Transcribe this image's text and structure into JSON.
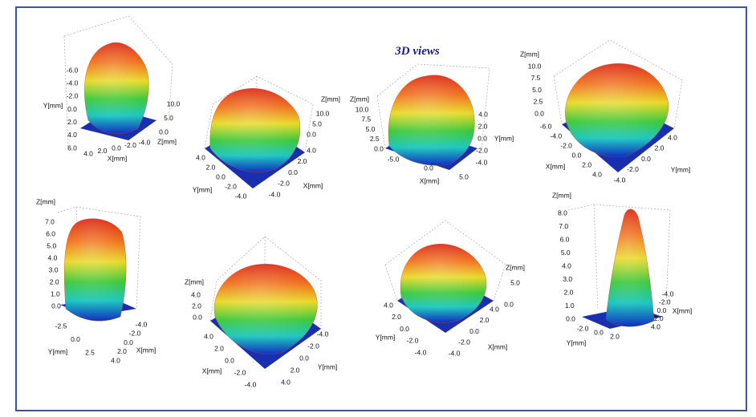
{
  "title": "3D views",
  "panels": [
    {
      "axes": [
        {
          "label": "Y[mm]",
          "ticks": [
            "-6.0",
            "-4.0",
            "-2.0",
            "0.0",
            "2.0",
            "4.0",
            "6.0"
          ]
        },
        {
          "label": "X[mm]",
          "ticks": [
            "4.0",
            "2.0",
            "0.0",
            "-2.0",
            "-4.0"
          ]
        },
        {
          "label": "Z[mm]",
          "ticks": [
            "10.0",
            "5.0",
            "0.0"
          ]
        }
      ]
    },
    {
      "axes": [
        {
          "label": "Z[mm]",
          "ticks": [
            "10.0",
            "5.0",
            "0.0"
          ]
        },
        {
          "label": "Y[mm]",
          "ticks": [
            "4.0",
            "2.0",
            "0.0",
            "-2.0",
            "-4.0"
          ]
        },
        {
          "label": "X[mm]",
          "ticks": [
            "4.0",
            "2.0",
            "0.0",
            "-2.0",
            "-4.0"
          ]
        }
      ]
    },
    {
      "axes": [
        {
          "label": "Z[mm]",
          "ticks": [
            "10.0",
            "7.5",
            "5.0",
            "2.5",
            "0.0"
          ]
        },
        {
          "label": "X[mm]",
          "ticks": [
            "-5.0",
            "0.0",
            "5.0"
          ]
        },
        {
          "label": "Y[mm]",
          "ticks": [
            "4.0",
            "2.0",
            "0.0",
            "-2.0",
            "-4.0"
          ]
        }
      ]
    },
    {
      "axes": [
        {
          "label": "Z[mm]",
          "ticks": [
            "10.0",
            "7.5",
            "5.0",
            "2.5",
            "0.0"
          ]
        },
        {
          "label": "X[mm]",
          "ticks": [
            "-6.0",
            "-4.0",
            "-2.0",
            "0.0",
            "2.0",
            "4.0"
          ]
        },
        {
          "label": "Y[mm]",
          "ticks": [
            "4.0",
            "2.0",
            "0.0",
            "-2.0",
            "-4.0"
          ]
        }
      ]
    },
    {
      "axes": [
        {
          "label": "Z[mm]",
          "ticks": [
            "7.0",
            "6.0",
            "5.0",
            "4.0",
            "3.0",
            "2.0",
            "1.0",
            "0.0"
          ]
        },
        {
          "label": "Y[mm]",
          "ticks": [
            "-2.5",
            "0.0",
            "2.5"
          ]
        },
        {
          "label": "X[mm]",
          "ticks": [
            "-4.0",
            "-2.0",
            "0.0",
            "2.0",
            "4.0"
          ]
        }
      ]
    },
    {
      "axes": [
        {
          "label": "Z[mm]",
          "ticks": [
            "4.0",
            "2.0",
            "0.0"
          ]
        },
        {
          "label": "X[mm]",
          "ticks": [
            "4.0",
            "2.0",
            "0.0",
            "-2.0",
            "-4.0"
          ]
        },
        {
          "label": "Y[mm]",
          "ticks": [
            "-4.0",
            "-2.0",
            "0.0",
            "2.0",
            "4.0"
          ]
        }
      ]
    },
    {
      "axes": [
        {
          "label": "Z[mm]",
          "ticks": [
            "5.0",
            "0.0"
          ]
        },
        {
          "label": "Y[mm]",
          "ticks": [
            "4.0",
            "2.0",
            "0.0",
            "-2.0",
            "-4.0"
          ]
        },
        {
          "label": "X[mm]",
          "ticks": [
            "4.0",
            "2.0",
            "0.0",
            "-2.0",
            "-4.0"
          ]
        }
      ]
    },
    {
      "axes": [
        {
          "label": "Z[mm]",
          "ticks": [
            "8.0",
            "7.0",
            "6.0",
            "5.0",
            "4.0",
            "3.0",
            "2.0",
            "1.0",
            "0.0"
          ]
        },
        {
          "label": "Y[mm]",
          "ticks": [
            "-2.0",
            "0.0",
            "2.0"
          ]
        },
        {
          "label": "X[mm]",
          "ticks": [
            "-4.0",
            "-2.0",
            "0.0",
            "2.0",
            "4.0"
          ]
        }
      ]
    }
  ]
}
